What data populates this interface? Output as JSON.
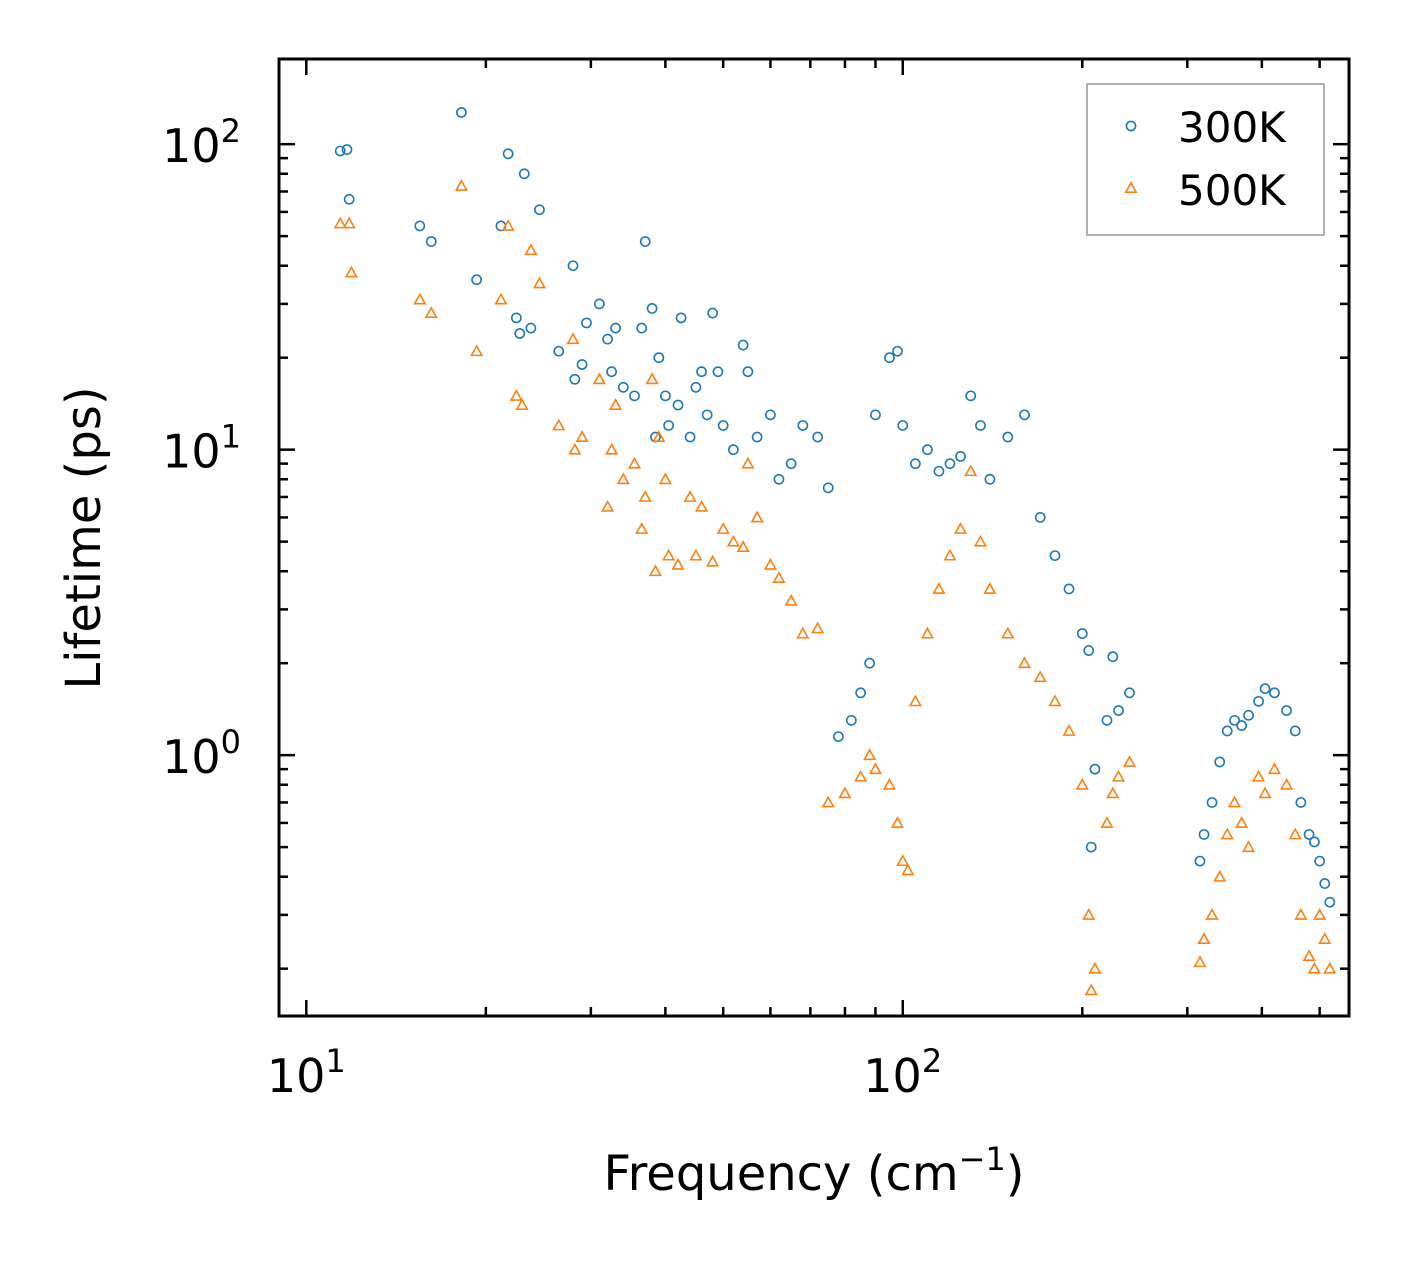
{
  "chart_data": {
    "type": "scatter",
    "title": "",
    "xlabel_main": "Frequency (cm",
    "xlabel_sup": "−1",
    "xlabel_close": ")",
    "ylabel": "Lifetime (ps)",
    "xscale": "log",
    "yscale": "log",
    "xlim": [
      9,
      560
    ],
    "ylim": [
      0.14,
      190
    ],
    "x_ticks": [
      {
        "value": 10,
        "base": "10",
        "exp": "1"
      },
      {
        "value": 100,
        "base": "10",
        "exp": "2"
      }
    ],
    "y_ticks": [
      {
        "value": 1,
        "base": "10",
        "exp": "0"
      },
      {
        "value": 10,
        "base": "10",
        "exp": "1"
      },
      {
        "value": 100,
        "base": "10",
        "exp": "2"
      }
    ],
    "legend": {
      "position": "top-right"
    },
    "series": [
      {
        "name": "300K",
        "marker": "circle",
        "color": "#1f77b4",
        "points": [
          [
            11.4,
            95
          ],
          [
            11.7,
            96
          ],
          [
            11.8,
            66
          ],
          [
            15.5,
            54
          ],
          [
            16.2,
            48
          ],
          [
            18.2,
            127
          ],
          [
            19.3,
            36
          ],
          [
            21.2,
            54
          ],
          [
            21.8,
            93
          ],
          [
            22.5,
            27
          ],
          [
            22.8,
            24
          ],
          [
            23.2,
            80
          ],
          [
            23.8,
            25
          ],
          [
            24.6,
            61
          ],
          [
            26.5,
            21
          ],
          [
            28.0,
            40
          ],
          [
            28.2,
            17
          ],
          [
            29.0,
            19
          ],
          [
            29.5,
            26
          ],
          [
            31.0,
            30
          ],
          [
            32.0,
            23
          ],
          [
            32.5,
            18
          ],
          [
            33.0,
            25
          ],
          [
            34.0,
            16
          ],
          [
            35.5,
            15
          ],
          [
            36.5,
            25
          ],
          [
            37.0,
            48
          ],
          [
            38.0,
            29
          ],
          [
            38.5,
            11
          ],
          [
            39.0,
            20
          ],
          [
            40.0,
            15
          ],
          [
            40.5,
            12
          ],
          [
            42.0,
            14
          ],
          [
            42.5,
            27
          ],
          [
            44.0,
            11
          ],
          [
            45.0,
            16
          ],
          [
            46.0,
            18
          ],
          [
            47.0,
            13
          ],
          [
            48.0,
            28
          ],
          [
            49.0,
            18
          ],
          [
            50.0,
            12
          ],
          [
            52.0,
            10
          ],
          [
            54.0,
            22
          ],
          [
            55.0,
            18
          ],
          [
            57.0,
            11
          ],
          [
            60.0,
            13
          ],
          [
            62.0,
            8
          ],
          [
            65.0,
            9
          ],
          [
            68.0,
            12
          ],
          [
            72.0,
            11
          ],
          [
            75.0,
            7.5
          ],
          [
            78.0,
            1.15
          ],
          [
            82.0,
            1.3
          ],
          [
            85.0,
            1.6
          ],
          [
            88.0,
            2.0
          ],
          [
            90.0,
            13
          ],
          [
            95.0,
            20
          ],
          [
            98.0,
            21
          ],
          [
            100.0,
            12
          ],
          [
            105.0,
            9
          ],
          [
            110.0,
            10
          ],
          [
            115.0,
            8.5
          ],
          [
            120.0,
            9
          ],
          [
            125.0,
            9.5
          ],
          [
            130.0,
            15
          ],
          [
            135.0,
            12
          ],
          [
            140.0,
            8
          ],
          [
            150.0,
            11
          ],
          [
            160.0,
            13
          ],
          [
            170.0,
            6
          ],
          [
            180.0,
            4.5
          ],
          [
            190.0,
            3.5
          ],
          [
            200.0,
            2.5
          ],
          [
            205.0,
            2.2
          ],
          [
            207.0,
            0.5
          ],
          [
            210.0,
            0.9
          ],
          [
            220.0,
            1.3
          ],
          [
            225.0,
            2.1
          ],
          [
            230.0,
            1.4
          ],
          [
            240.0,
            1.6
          ],
          [
            315.0,
            0.45
          ],
          [
            320.0,
            0.55
          ],
          [
            330.0,
            0.7
          ],
          [
            340.0,
            0.95
          ],
          [
            350.0,
            1.2
          ],
          [
            360.0,
            1.3
          ],
          [
            370.0,
            1.25
          ],
          [
            380.0,
            1.35
          ],
          [
            395.0,
            1.5
          ],
          [
            405.0,
            1.65
          ],
          [
            420.0,
            1.6
          ],
          [
            440.0,
            1.4
          ],
          [
            455.0,
            1.2
          ],
          [
            465.0,
            0.7
          ],
          [
            480.0,
            0.55
          ],
          [
            490.0,
            0.52
          ],
          [
            500.0,
            0.45
          ],
          [
            510.0,
            0.38
          ],
          [
            520.0,
            0.33
          ]
        ]
      },
      {
        "name": "500K",
        "marker": "triangle",
        "color": "#ff7f0e",
        "points": [
          [
            11.4,
            55
          ],
          [
            11.8,
            55
          ],
          [
            11.9,
            38
          ],
          [
            15.5,
            31
          ],
          [
            16.2,
            28
          ],
          [
            18.2,
            73
          ],
          [
            19.3,
            21
          ],
          [
            21.2,
            31
          ],
          [
            21.8,
            54
          ],
          [
            22.5,
            15
          ],
          [
            23.0,
            14
          ],
          [
            23.8,
            45
          ],
          [
            24.6,
            35
          ],
          [
            26.5,
            12
          ],
          [
            28.0,
            23
          ],
          [
            28.2,
            10
          ],
          [
            29.0,
            11
          ],
          [
            31.0,
            17
          ],
          [
            32.0,
            6.5
          ],
          [
            32.5,
            10
          ],
          [
            33.0,
            14
          ],
          [
            34.0,
            8
          ],
          [
            35.5,
            9
          ],
          [
            36.5,
            5.5
          ],
          [
            37.0,
            7
          ],
          [
            38.0,
            17
          ],
          [
            38.5,
            4.0
          ],
          [
            39.0,
            11
          ],
          [
            40.0,
            8
          ],
          [
            40.5,
            4.5
          ],
          [
            42.0,
            4.2
          ],
          [
            44.0,
            7
          ],
          [
            45.0,
            4.5
          ],
          [
            46.0,
            6.5
          ],
          [
            48.0,
            4.3
          ],
          [
            50.0,
            5.5
          ],
          [
            52.0,
            5.0
          ],
          [
            54.0,
            4.8
          ],
          [
            55.0,
            9
          ],
          [
            57.0,
            6
          ],
          [
            60.0,
            4.2
          ],
          [
            62.0,
            3.8
          ],
          [
            65.0,
            3.2
          ],
          [
            68.0,
            2.5
          ],
          [
            72.0,
            2.6
          ],
          [
            75.0,
            0.7
          ],
          [
            80.0,
            0.75
          ],
          [
            85.0,
            0.85
          ],
          [
            88.0,
            1.0
          ],
          [
            90.0,
            0.9
          ],
          [
            95.0,
            0.8
          ],
          [
            98.0,
            0.6
          ],
          [
            100.0,
            0.45
          ],
          [
            102.0,
            0.42
          ],
          [
            105.0,
            1.5
          ],
          [
            110.0,
            2.5
          ],
          [
            115.0,
            3.5
          ],
          [
            120.0,
            4.5
          ],
          [
            125.0,
            5.5
          ],
          [
            130.0,
            8.5
          ],
          [
            135.0,
            5
          ],
          [
            140.0,
            3.5
          ],
          [
            150.0,
            2.5
          ],
          [
            160.0,
            2.0
          ],
          [
            170.0,
            1.8
          ],
          [
            180.0,
            1.5
          ],
          [
            190.0,
            1.2
          ],
          [
            200.0,
            0.8
          ],
          [
            205.0,
            0.3
          ],
          [
            207.0,
            0.17
          ],
          [
            210.0,
            0.2
          ],
          [
            220.0,
            0.6
          ],
          [
            225.0,
            0.75
          ],
          [
            230.0,
            0.85
          ],
          [
            240.0,
            0.95
          ],
          [
            315.0,
            0.21
          ],
          [
            320.0,
            0.25
          ],
          [
            330.0,
            0.3
          ],
          [
            340.0,
            0.4
          ],
          [
            350.0,
            0.55
          ],
          [
            360.0,
            0.7
          ],
          [
            370.0,
            0.6
          ],
          [
            380.0,
            0.5
          ],
          [
            395.0,
            0.85
          ],
          [
            405.0,
            0.75
          ],
          [
            420.0,
            0.9
          ],
          [
            440.0,
            0.8
          ],
          [
            455.0,
            0.55
          ],
          [
            465.0,
            0.3
          ],
          [
            480.0,
            0.22
          ],
          [
            490.0,
            0.2
          ],
          [
            500.0,
            0.3
          ],
          [
            510.0,
            0.25
          ],
          [
            520.0,
            0.2
          ]
        ]
      }
    ]
  }
}
